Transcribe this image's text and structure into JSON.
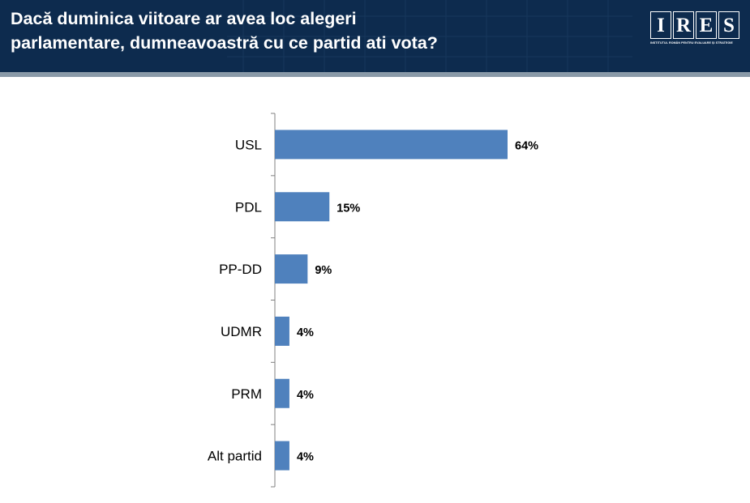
{
  "header": {
    "title_line1": "Dacă duminica viitoare ar avea loc alegeri",
    "title_line2": "parlamentare, dumneavoastră cu ce partid ati vota?",
    "logo_letters": [
      "I",
      "R",
      "E",
      "S"
    ],
    "logo_subtitle": "INSTITUTUL ROMÂN PENTRU EVALUARE ȘI STRATEGIE"
  },
  "colors": {
    "header_bg": "#0d2b4e",
    "bar": "#4f81bd",
    "axis": "#808080",
    "label_text": "#000000"
  },
  "chart_data": {
    "type": "bar",
    "orientation": "horizontal",
    "categories": [
      "USL",
      "PDL",
      "PP-DD",
      "UDMR",
      "PRM",
      "Alt partid"
    ],
    "values": [
      64,
      15,
      9,
      4,
      4,
      4
    ],
    "value_labels": [
      "64%",
      "15%",
      "9%",
      "4%",
      "4%",
      "4%"
    ],
    "xlim": [
      0,
      100
    ],
    "grid": false,
    "legend": "none"
  }
}
